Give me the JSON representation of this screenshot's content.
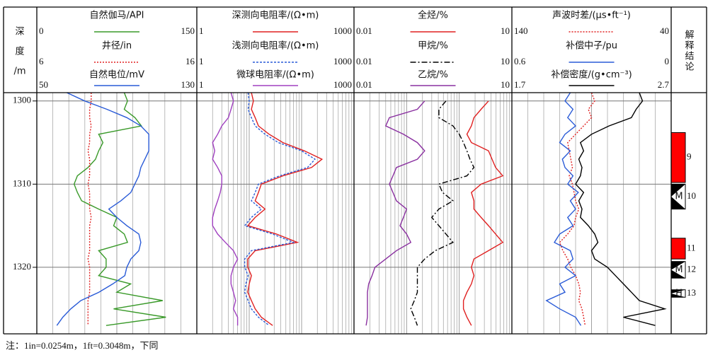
{
  "chart_data": {
    "type": "well-log",
    "depth_title_lines": [
      "深",
      "度",
      "/m"
    ],
    "interpretation_title": "解释结论",
    "ylim": [
      1299,
      1328
    ],
    "yticks": [
      1300,
      1310,
      1320
    ],
    "depth": [
      1299,
      1300,
      1301,
      1302,
      1303,
      1304,
      1305,
      1306,
      1307,
      1308,
      1309,
      1310,
      1311,
      1312,
      1313,
      1314,
      1315,
      1316,
      1317,
      1318,
      1319,
      1320,
      1321,
      1322,
      1323,
      1324,
      1325,
      1326,
      1327
    ],
    "tracks": [
      {
        "log": false,
        "curves": [
          {
            "name": "自然伽马/API",
            "color": "#3a9a2a",
            "dash": "none",
            "xlim": [
              0,
              150
            ],
            "values": [
              82,
              85,
              82,
              92,
              98,
              58,
              62,
              58,
              55,
              48,
              38,
              35,
              38,
              42,
              58,
              75,
              72,
              82,
              85,
              58,
              65,
              65,
              58,
              88,
              75,
              118,
              72,
              121,
              65
            ]
          },
          {
            "name": "井径/in",
            "color": "#e02020",
            "dash": "2,2",
            "xlim": [
              6,
              16
            ],
            "values": [
              9.4,
              9.4,
              9.3,
              9.3,
              9.4,
              9.3,
              9.3,
              9.2,
              9.3,
              9.3,
              9.3,
              9.2,
              9.3,
              9.3,
              9.3,
              9.4,
              9.3,
              9.3,
              9.3,
              9.3,
              9.2,
              9.3,
              9.3,
              9.3,
              9.3,
              9.2,
              9.2,
              9.2,
              9.2
            ]
          },
          {
            "name": "自然电位/mV",
            "color": "#2a5bd7",
            "dash": "none",
            "xlim": [
              50,
              130
            ],
            "values": [
              65,
              74,
              85,
              95,
              102,
              106,
              106,
              106,
              104,
              102,
              101,
              99,
              97,
              92,
              86,
              90,
              95,
              101,
              102,
              101,
              97,
              95,
              94,
              88,
              81,
              72,
              67,
              63,
              60
            ]
          }
        ]
      },
      {
        "log": true,
        "curves": [
          {
            "name": "深测向电阻率/(Ω•m)",
            "color": "#e02020",
            "dash": "none",
            "xlim": [
              1,
              1000
            ],
            "values": [
              11,
              12,
              11,
              13,
              15,
              24,
              44,
              113,
              245,
              155,
              44,
              17,
              15,
              13,
              20,
              13,
              9.4,
              33,
              83,
              13,
              9.4,
              9.4,
              11,
              10,
              9.4,
              11,
              13,
              17,
              28
            ]
          },
          {
            "name": "浅测向电阻率/(Ω•m)",
            "color": "#2a5bd7",
            "dash": "3,2",
            "xlim": [
              1,
              1000
            ],
            "values": [
              9.5,
              10,
              9.5,
              11,
              13,
              20,
              36,
              100,
              180,
              130,
              38,
              15,
              13,
              11,
              17,
              11,
              8.2,
              28,
              70,
              11,
              8.2,
              8.2,
              9.5,
              8.6,
              8.2,
              9.5,
              11,
              15,
              24
            ]
          },
          {
            "name": "微球电阻率/(Ω•m)",
            "color": "#a040c0",
            "dash": "none",
            "xlim": [
              1,
              1000
            ],
            "values": [
              4.5,
              5,
              4.5,
              4,
              3,
              2.5,
              2,
              2.2,
              2,
              2.5,
              3,
              3,
              2.8,
              2.5,
              2.2,
              2,
              2,
              2.5,
              3.5,
              5,
              6,
              5,
              4.5,
              4.5,
              5,
              5.5,
              5,
              6,
              6
            ]
          }
        ]
      },
      {
        "log": true,
        "curves": [
          {
            "name": "全烃/%",
            "color": "#e02020",
            "dash": "none",
            "xlim": [
              0.01,
              10
            ],
            "values": [
              null,
              3.6,
              2.6,
              1.9,
              1.7,
              1.4,
              1.7,
              3.6,
              4.2,
              4.9,
              6.7,
              2.6,
              1.7,
              1.9,
              1.9,
              2.6,
              3.6,
              4.9,
              6.7,
              3.6,
              1.9,
              1.7,
              1.9,
              1.7,
              1.4,
              1.2,
              1.2,
              1.4,
              1.7
            ]
          },
          {
            "name": "甲烷/%",
            "color": "#000000",
            "dash": "8,3,2,3",
            "xlim": [
              0.01,
              10
            ],
            "values": [
              null,
              0.56,
              0.41,
              0.41,
              0.76,
              1.0,
              1.2,
              1.4,
              1.6,
              1.9,
              1.4,
              0.41,
              0.48,
              0.76,
              0.41,
              0.3,
              0.41,
              0.56,
              0.76,
              0.35,
              0.22,
              0.16,
              0.16,
              0.16,
              0.16,
              0.14,
              0.12,
              0.14,
              0.16
            ]
          },
          {
            "name": "乙烷/%",
            "color": "#8a30a0",
            "dash": "none",
            "xlim": [
              0.01,
              10
            ],
            "values": [
              null,
              0.22,
              0.16,
              0.047,
              0.04,
              0.087,
              0.16,
              0.22,
              0.16,
              0.064,
              0.055,
              0.047,
              0.055,
              0.064,
              0.1,
              0.087,
              0.075,
              0.1,
              0.12,
              0.064,
              0.04,
              0.025,
              0.022,
              0.019,
              0.018,
              0.018,
              0.018,
              0.018,
              0.017
            ]
          }
        ]
      },
      {
        "log": false,
        "curves": [
          {
            "name": "声波时差/(μs•ft⁻¹)",
            "color": "#e02020",
            "dash": "2,2",
            "xlim": [
              140,
              40
            ],
            "values": [
              90,
              88,
              92,
              90,
              95,
              100,
              105,
              104,
              103,
              102,
              104,
              102,
              101,
              100,
              98,
              100,
              101,
              105,
              110,
              108,
              105,
              103,
              100,
              98,
              97,
              98,
              96,
              95,
              94
            ]
          },
          {
            "name": "补偿中子/pu",
            "color": "#2a5bd7",
            "dash": "none",
            "xlim": [
              0.6,
              0
            ],
            "values": [
              0.38,
              0.4,
              0.37,
              0.39,
              0.36,
              0.4,
              0.42,
              0.38,
              0.41,
              0.4,
              0.37,
              0.39,
              0.35,
              0.38,
              0.36,
              0.39,
              0.37,
              0.42,
              0.44,
              0.38,
              0.37,
              0.4,
              0.36,
              0.42,
              0.4,
              0.47,
              0.42,
              0.36,
              0.34
            ]
          },
          {
            "name": "补偿密度/(g•cm⁻³)",
            "color": "#000000",
            "dash": "none",
            "xlim": [
              1.7,
              2.7
            ],
            "values": [
              2.5,
              2.52,
              2.48,
              2.45,
              2.31,
              2.2,
              2.13,
              2.15,
              2.12,
              2.14,
              2.13,
              2.1,
              2.15,
              2.12,
              2.14,
              2.13,
              2.18,
              2.22,
              2.24,
              2.2,
              2.22,
              2.3,
              2.35,
              2.4,
              2.45,
              2.5,
              2.66,
              2.4,
              2.6
            ]
          }
        ]
      }
    ],
    "zones": [
      {
        "label": "9",
        "top": 1303.8,
        "bottom": 1309.8,
        "color": "#ff0000"
      },
      {
        "label": "10",
        "marker": "M",
        "top": 1310,
        "bottom": 1313,
        "color": "#000000"
      },
      {
        "label": "11",
        "top": 1316.5,
        "bottom": 1319,
        "color": "#ff0000"
      },
      {
        "label": "12",
        "marker": "M",
        "top": 1319.3,
        "bottom": 1321.3,
        "color": "#000000"
      },
      {
        "label": "13",
        "marker": "H",
        "top": 1322.7,
        "bottom": 1323.6,
        "color": "#000000"
      }
    ],
    "note": "注：1in=0.0254m，1ft=0.3048m，下同"
  }
}
